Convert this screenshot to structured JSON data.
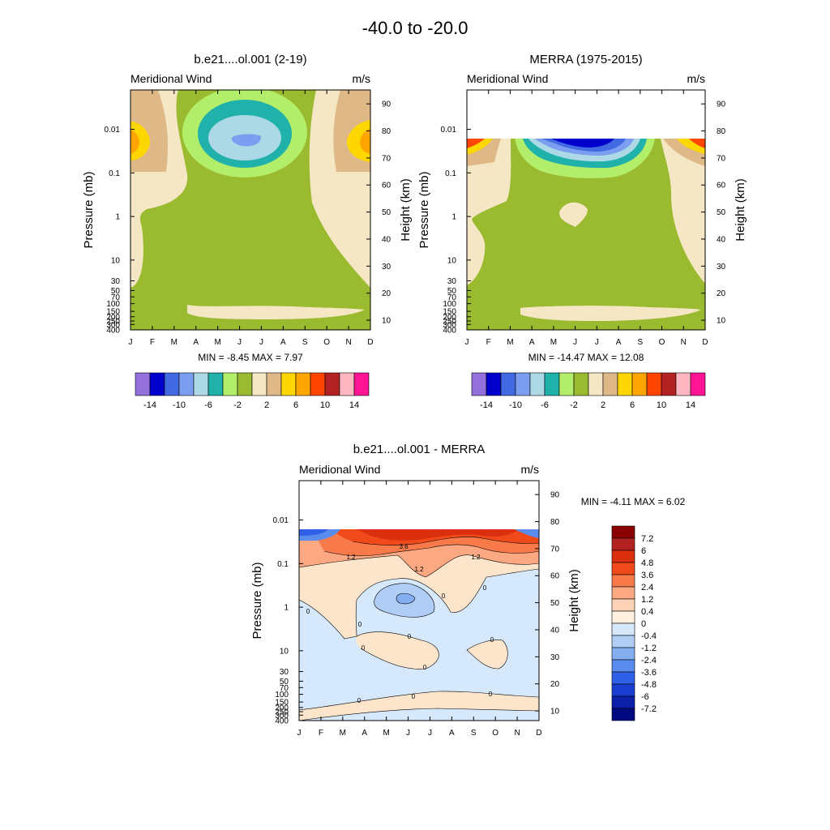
{
  "figure_title": "-40.0 to -20.0",
  "chart_data": [
    {
      "id": "model",
      "type": "contour",
      "title": "b.e21....ol.001 (2-19)",
      "left_label": "Meridional Wind",
      "right_label": "m/s",
      "ylabel": "Pressure (mb)",
      "y2label": "Height (km)",
      "x_ticks": [
        "J",
        "F",
        "M",
        "A",
        "M",
        "J",
        "J",
        "A",
        "S",
        "O",
        "N",
        "D"
      ],
      "p_ticks": [
        "0.01",
        "0.1",
        "1",
        "10",
        "30",
        "50",
        "70",
        "100",
        "150",
        "200",
        "250",
        "300",
        "400"
      ],
      "z_ticks": [
        "90",
        "80",
        "70",
        "60",
        "50",
        "40",
        "30",
        "20",
        "10"
      ],
      "stats": "MIN =  -8.45  MAX =   7.97",
      "colorbar_ticks": [
        "-14",
        "-10",
        "-6",
        "-2",
        "2",
        "6",
        "10",
        "14"
      ],
      "colorbar_colors": [
        "#9370db",
        "#0000cd",
        "#4169e1",
        "#7b9ef0",
        "#add8e6",
        "#20b2aa",
        "#b3ee6a",
        "#9abb30",
        "#f5e6c4",
        "#deb887",
        "#ffd700",
        "#ffa500",
        "#ff4500",
        "#b22222",
        "#ffb6c1",
        "#ff1493"
      ]
    },
    {
      "id": "merra",
      "type": "contour",
      "title": "MERRA (1975-2015)",
      "left_label": "Meridional Wind",
      "right_label": "m/s",
      "ylabel": "Pressure (mb)",
      "y2label": "Height (km)",
      "x_ticks": [
        "J",
        "F",
        "M",
        "A",
        "M",
        "J",
        "J",
        "A",
        "S",
        "O",
        "N",
        "D"
      ],
      "p_ticks": [
        "0.01",
        "0.1",
        "1",
        "10",
        "30",
        "50",
        "70",
        "100",
        "150",
        "200",
        "250",
        "300",
        "400"
      ],
      "z_ticks": [
        "90",
        "80",
        "70",
        "60",
        "50",
        "40",
        "30",
        "20",
        "10"
      ],
      "stats": "MIN = -14.47  MAX =  12.08",
      "colorbar_ticks": [
        "-14",
        "-10",
        "-6",
        "-2",
        "2",
        "6",
        "10",
        "14"
      ],
      "colorbar_colors": [
        "#9370db",
        "#0000cd",
        "#4169e1",
        "#7b9ef0",
        "#add8e6",
        "#20b2aa",
        "#b3ee6a",
        "#9abb30",
        "#f5e6c4",
        "#deb887",
        "#ffd700",
        "#ffa500",
        "#ff4500",
        "#b22222",
        "#ffb6c1",
        "#ff1493"
      ]
    },
    {
      "id": "diff",
      "type": "contour",
      "title": "b.e21....ol.001 - MERRA",
      "left_label": "Meridional Wind",
      "right_label": "m/s",
      "ylabel": "Pressure (mb)",
      "y2label": "Height (km)",
      "x_ticks": [
        "J",
        "F",
        "M",
        "A",
        "M",
        "J",
        "J",
        "A",
        "S",
        "O",
        "N",
        "D"
      ],
      "p_ticks": [
        "0.01",
        "0.1",
        "1",
        "10",
        "30",
        "50",
        "70",
        "100",
        "150",
        "200",
        "250",
        "300",
        "400"
      ],
      "z_ticks": [
        "90",
        "80",
        "70",
        "60",
        "50",
        "40",
        "30",
        "20",
        "10"
      ],
      "stats": "MIN =  -4.11  MAX =   6.02",
      "colorbar_ticks": [
        "7.2",
        "6",
        "4.8",
        "3.6",
        "2.4",
        "1.2",
        "0.4",
        "0",
        "-0.4",
        "-1.2",
        "-2.4",
        "-3.6",
        "-4.8",
        "-6",
        "-7.2"
      ],
      "colorbar_colors": [
        "#8b0000",
        "#b22222",
        "#dc2f0f",
        "#f04a1a",
        "#f87a4a",
        "#fca882",
        "#fdd3b8",
        "#fff0e0",
        "#d6e8fb",
        "#afcdf5",
        "#84aef0",
        "#5a8cf0",
        "#3060e8",
        "#1a3fd0",
        "#0a20a8",
        "#000a80"
      ],
      "contour_labels": [
        "3.6",
        "1.2",
        "1.2",
        "1.2",
        "0",
        "0",
        "0",
        "0",
        "0",
        "0",
        "0",
        "0",
        "0",
        "0",
        "0"
      ]
    }
  ]
}
